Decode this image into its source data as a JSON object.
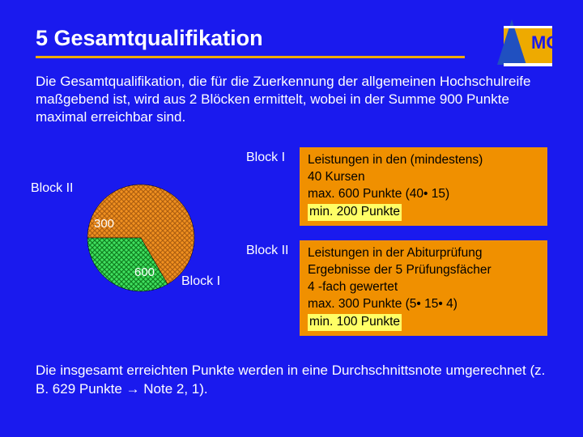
{
  "title": "5  Gesamtqualifikation",
  "intro": "Die Gesamtqualifikation, die für die Zuerkennung der allgemeinen Hochschulreife maßgebend ist, wird aus 2 Blöcken ermittelt, wobei in der Summe 900 Punkte maximal erreichbar sind.",
  "pie": {
    "type": "pie",
    "slices": [
      {
        "label": "Block I",
        "value": 600,
        "color": "#f09020",
        "hatch_color": "#b06010"
      },
      {
        "label": "Block II",
        "value": 300,
        "color": "#40e060",
        "hatch_color": "#108020"
      }
    ],
    "radius": 66,
    "background_color": "#1a1aee",
    "label_color": "#ffffff",
    "label_fontsize": 16,
    "value_fontsize": 15
  },
  "blocks": [
    {
      "name": "Block I",
      "lines": [
        "Leistungen in den (mindestens)",
        "40 Kursen",
        "max. 600 Punkte (40• 15)"
      ],
      "highlight": "min. 200 Punkte"
    },
    {
      "name": "Block II",
      "lines": [
        "Leistungen in der Abiturprüfung",
        "Ergebnisse der 5 Prüfungsfächer",
        "4 -fach gewertet",
        "max. 300 Punkte (5• 15• 4)"
      ],
      "highlight": "min. 100 Punkte"
    }
  ],
  "outro": "Die insgesamt erreichten Punkte werden in eine Durchschnittsnote umgerechnet (z. B. 629 Punkte → Note 2, 1).",
  "colors": {
    "background": "#1a1aee",
    "accent": "#eeaa00",
    "box_bg": "#f09000",
    "highlight_bg": "#ffff66",
    "text_light": "#ffffff",
    "text_dark": "#000000"
  },
  "logo": {
    "name": "lmg-logo",
    "bg": "#eeaa00",
    "shape_color": "#2050c0",
    "letters": "MG"
  }
}
